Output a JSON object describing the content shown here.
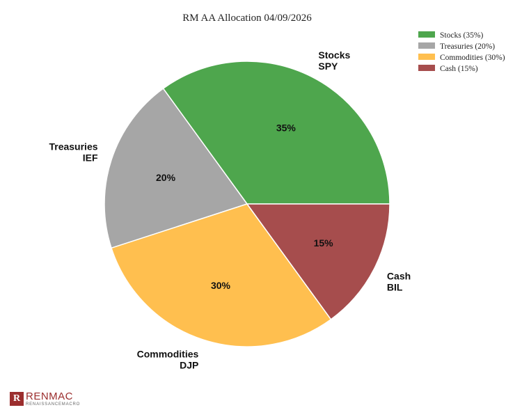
{
  "chart_data": {
    "type": "pie",
    "title": "RM AA Allocation 04/09/2026",
    "slices": [
      {
        "category": "Stocks",
        "ticker": "SPY",
        "value": 35,
        "value_label": "35%",
        "legend": "Stocks (35%)",
        "color": "#4ea64d"
      },
      {
        "category": "Treasuries",
        "ticker": "IEF",
        "value": 20,
        "value_label": "20%",
        "legend": "Treasuries (20%)",
        "color": "#a6a6a6"
      },
      {
        "category": "Commodities",
        "ticker": "DJP",
        "value": 30,
        "value_label": "30%",
        "legend": "Commodities (30%)",
        "color": "#ffbf4f"
      },
      {
        "category": "Cash",
        "ticker": "BIL",
        "value": 15,
        "value_label": "15%",
        "legend": "Cash (15%)",
        "color": "#a64d4d"
      }
    ],
    "start_angle": "0 degrees (east), counter-clockwise",
    "legend_position": "top-right"
  },
  "logo": {
    "mark": "R",
    "name": "RENMAC",
    "subtitle": "RENAISSANCEMACRO"
  }
}
